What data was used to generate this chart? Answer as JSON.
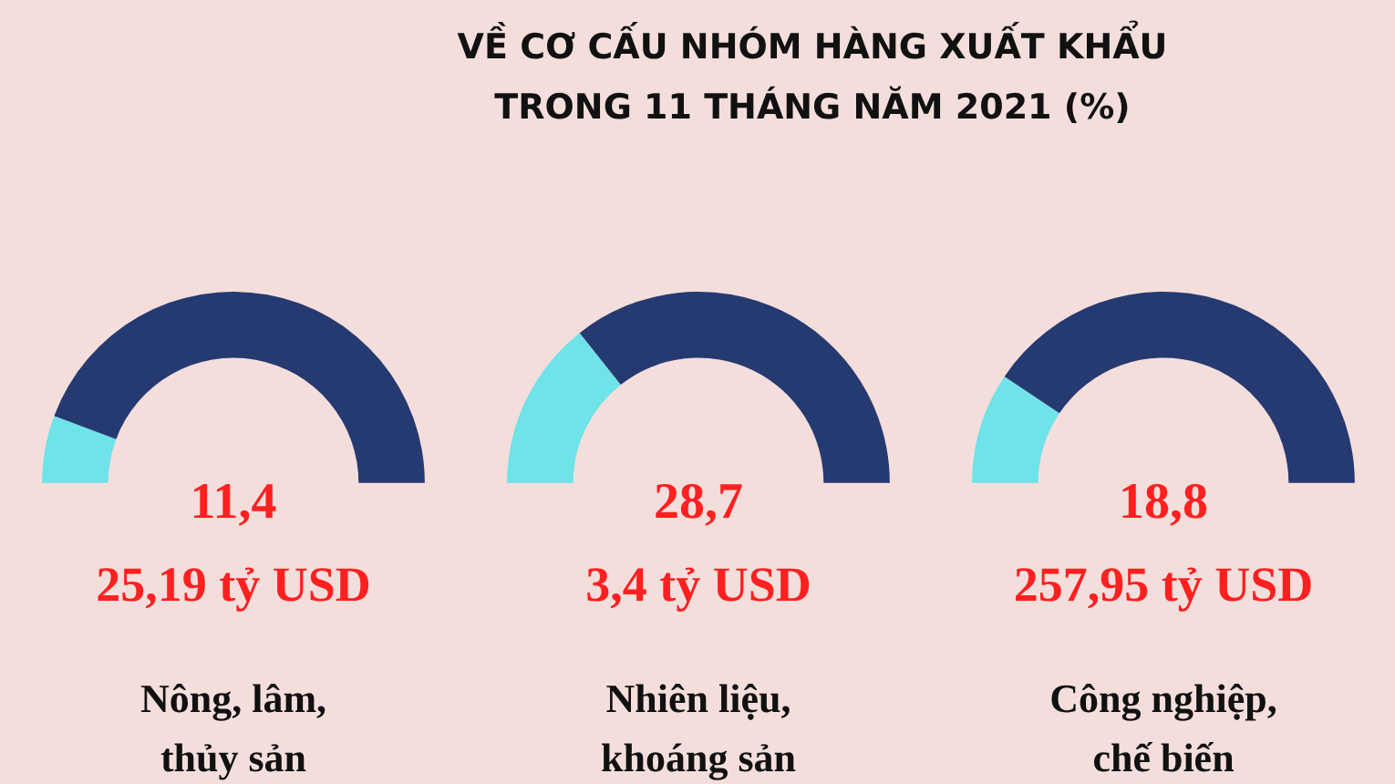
{
  "chart_data": [
    {
      "type": "other",
      "title": "VỀ CƠ CẤU NHÓM HÀNG XUẤT KHẨU\nTRONG 11 THÁNG NĂM 2021 (%)"
    },
    {
      "type": "donut",
      "title": "Nông, lâm,\nthủy sản",
      "categories": [
        null,
        null
      ],
      "values": [
        11.4,
        88.6
      ],
      "colors": [
        "#6ee3e8",
        "#253a70"
      ],
      "annotations": [
        "11,4",
        "25,19 tỷ USD"
      ]
    },
    {
      "type": "donut",
      "title": "Nhiên liệu,\nkhoáng sản",
      "categories": [
        null,
        null
      ],
      "values": [
        28.7,
        71.3
      ],
      "colors": [
        "#6ee3e8",
        "#253a70"
      ],
      "annotations": [
        "28,7",
        "3,4 tỷ USD"
      ]
    },
    {
      "type": "donut",
      "title": "Công nghiệp,\nchế biến",
      "categories": [
        null,
        null
      ],
      "values": [
        18.8,
        81.2
      ],
      "colors": [
        "#6ee3e8",
        "#253a70"
      ],
      "annotations": [
        "18,8",
        "257,95 tỷ USD"
      ]
    }
  ]
}
